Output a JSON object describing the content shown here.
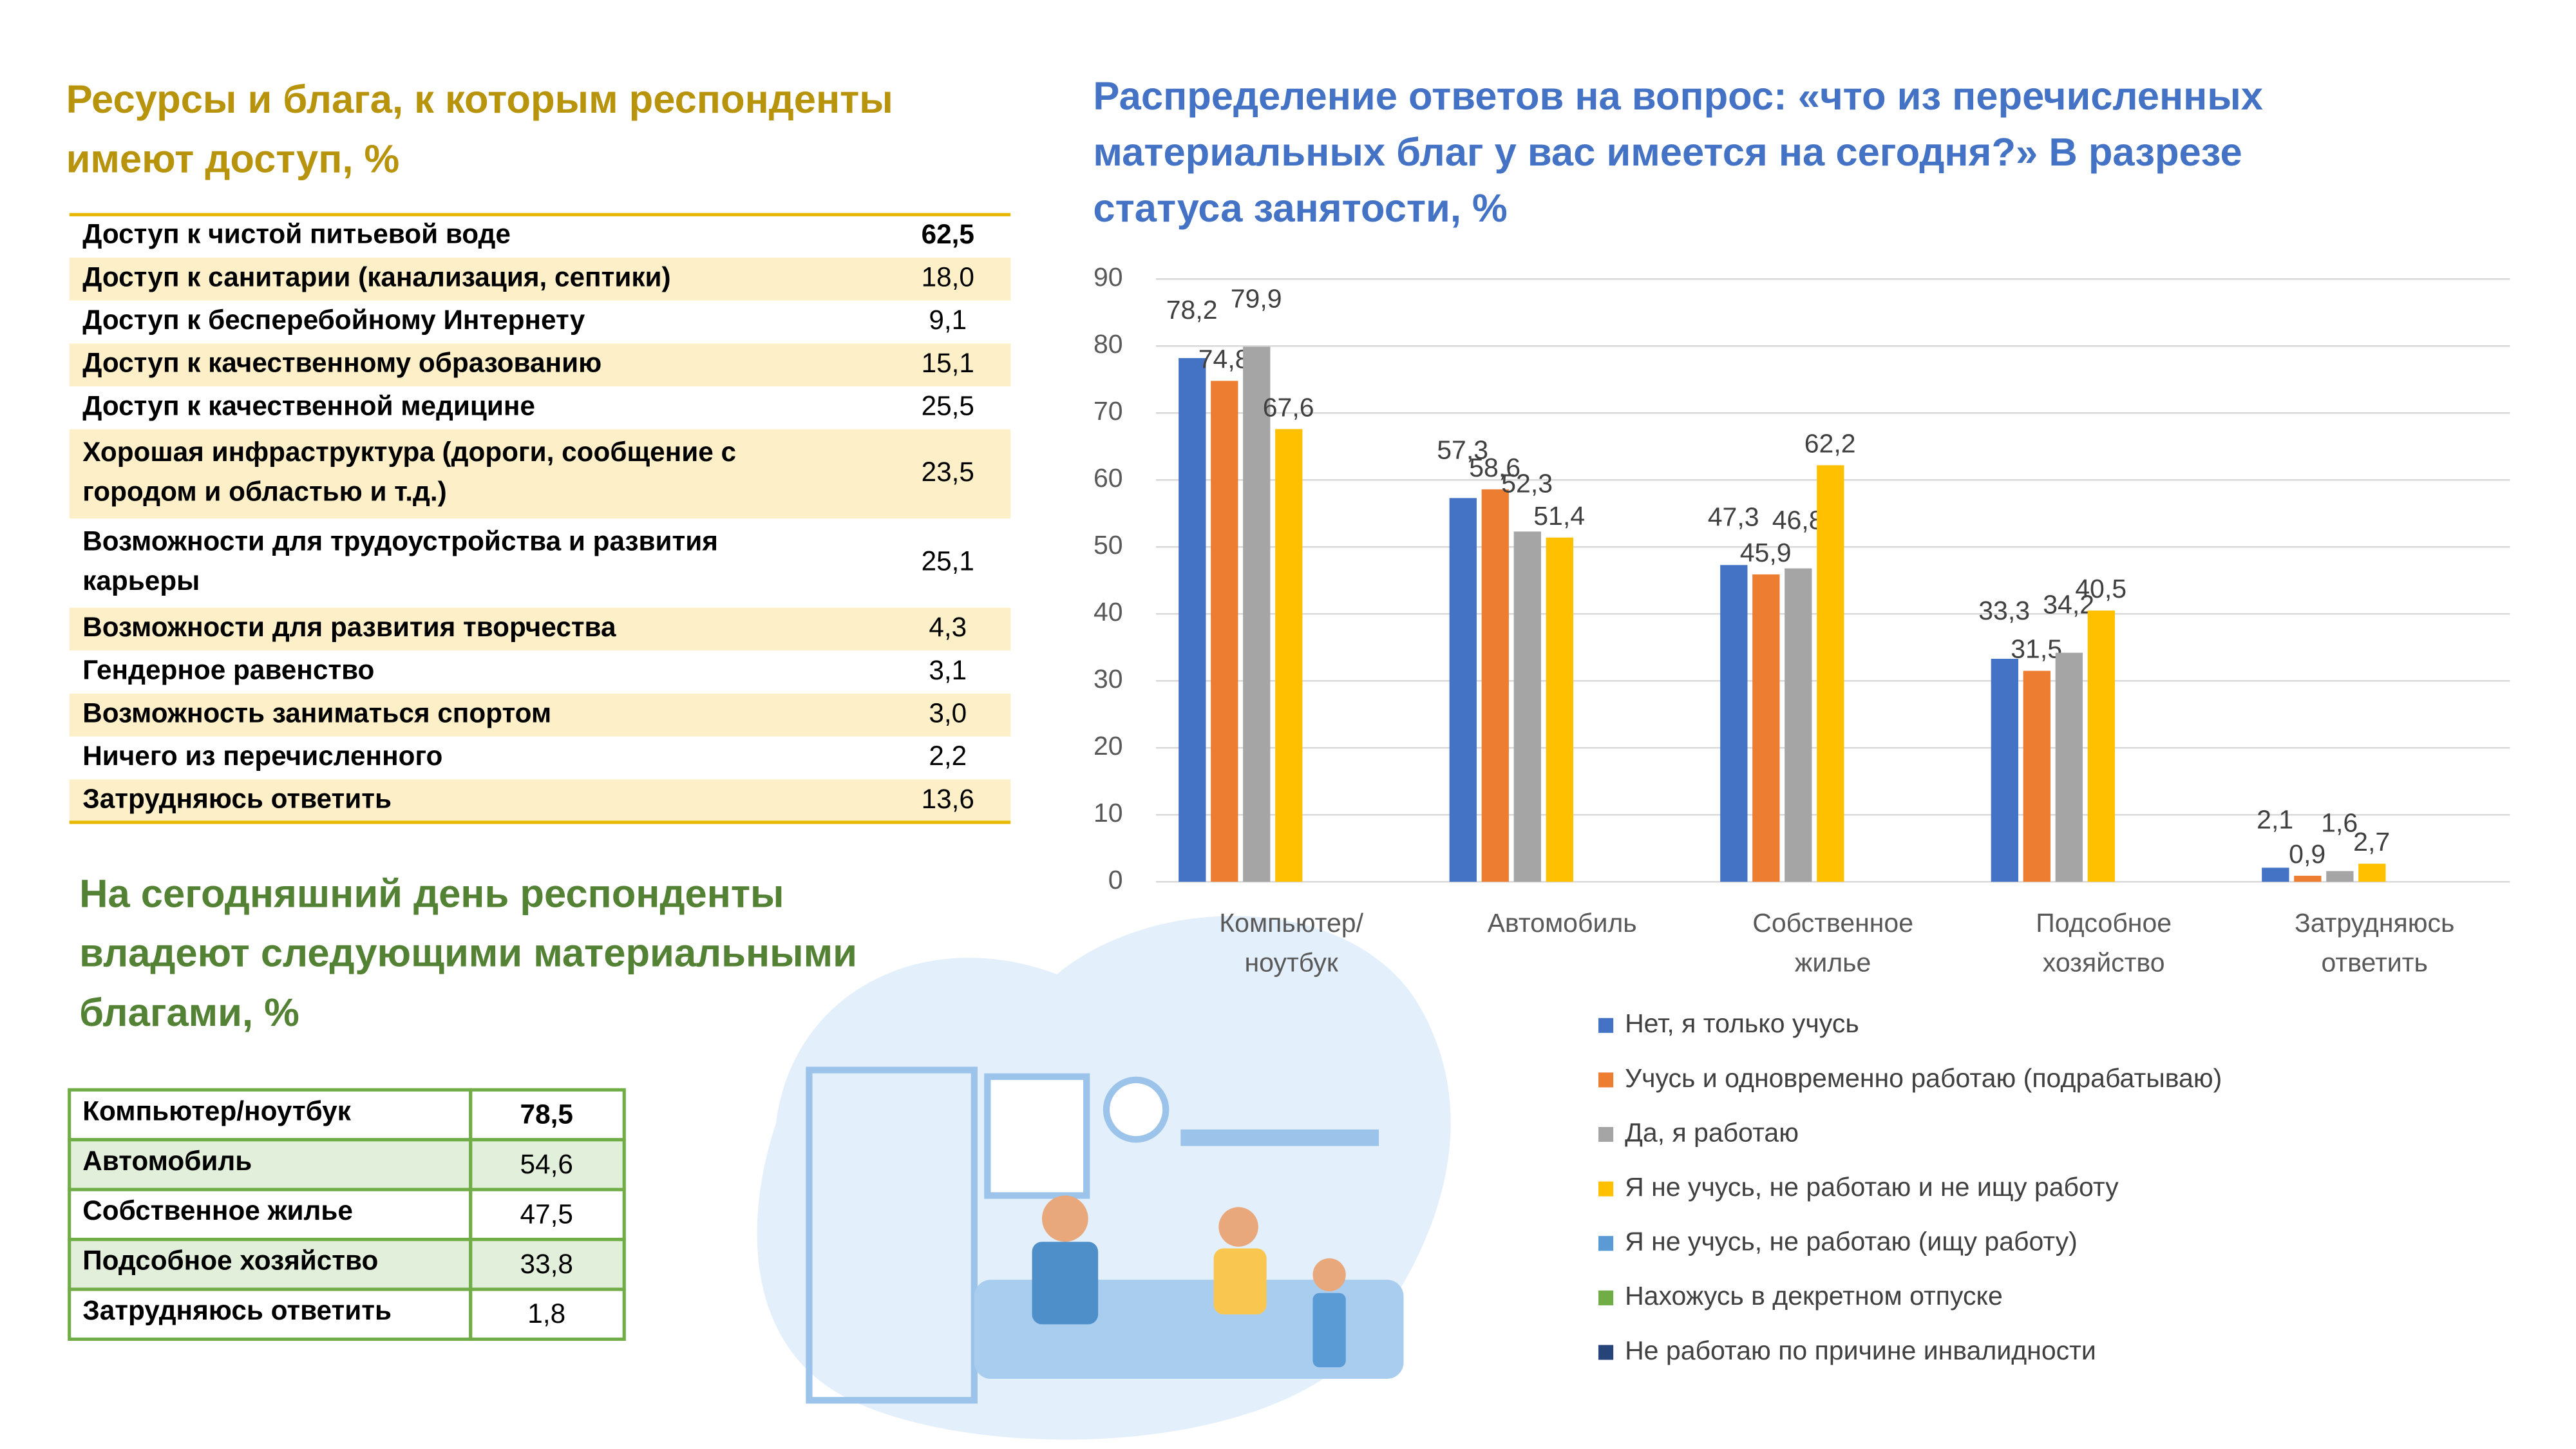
{
  "resources_table": {
    "title": "Ресурсы и блага, к которым респонденты имеют доступ, %",
    "rows": [
      [
        "Доступ к чистой питьевой воде",
        "62,5"
      ],
      [
        "Доступ к санитарии (канализация, септики)",
        "18,0"
      ],
      [
        "Доступ к бесперебойному Интернету",
        "9,1"
      ],
      [
        "Доступ к качественному образованию",
        "15,1"
      ],
      [
        "Доступ к качественной медицине",
        "25,5"
      ],
      [
        "Хорошая инфраструктура (дороги, сообщение с городом и областью и т.д.)",
        "23,5"
      ],
      [
        "Возможности для трудоустройства и развития карьеры",
        "25,1"
      ],
      [
        "Возможности для развития творчества",
        "4,3"
      ],
      [
        "Гендерное равенство",
        "3,1"
      ],
      [
        "Возможность заниматься спортом",
        "3,0"
      ],
      [
        "Ничего из перечисленного",
        "2,2"
      ],
      [
        "Затрудняюсь ответить",
        "13,6"
      ]
    ]
  },
  "goods_table": {
    "title": "На сегодняшний день респонденты владеют следующими материальными благами, %",
    "rows": [
      [
        "Компьютер/ноутбук",
        "78,5"
      ],
      [
        "Автомобиль",
        "54,6"
      ],
      [
        "Собственное жилье",
        "47,5"
      ],
      [
        "Подсобное хозяйство",
        "33,8"
      ],
      [
        "Затрудняюсь ответить",
        "1,8"
      ]
    ]
  },
  "chart_data": {
    "type": "bar",
    "title": "Распределение ответов на вопрос: «что из перечисленных материальных благ у вас имеется на сегодня?» В разрезе статуса занятости, %",
    "categories": [
      "Компьютер/ ноутбук",
      "Автомобиль",
      "Собственное жилье",
      "Подсобное хозяйство",
      "Затрудняюсь ответить"
    ],
    "series": [
      {
        "name": "Нет, я только учусь",
        "color": "#4472c4",
        "values": [
          78.2,
          57.3,
          47.3,
          33.3,
          2.1
        ],
        "value_labels": [
          "78,2",
          "57,3",
          "47,3",
          "33,3",
          "2,1"
        ]
      },
      {
        "name": "Учусь и одновременно работаю (подрабатываю)",
        "color": "#ed7d31",
        "values": [
          74.8,
          58.6,
          45.9,
          31.5,
          0.9
        ],
        "value_labels": [
          "74,8",
          "58,6",
          "45,9",
          "31,5",
          "0,9"
        ]
      },
      {
        "name": "Да, я работаю",
        "color": "#a5a5a5",
        "values": [
          79.9,
          52.3,
          46.8,
          34.2,
          1.6
        ],
        "value_labels": [
          "79,9",
          "52,3",
          "46,8",
          "34,2",
          "1,6"
        ]
      },
      {
        "name": "Я не учусь, не работаю и не ищу работу",
        "color": "#ffc000",
        "values": [
          67.6,
          51.4,
          62.2,
          40.5,
          2.7
        ],
        "value_labels": [
          "67,6",
          "51,4",
          "62,2",
          "40,5",
          "2,7"
        ]
      },
      {
        "name": "Я не учусь, не работаю (ищу работу)",
        "color": "#5b9bd5",
        "values": [
          null,
          null,
          null,
          null,
          null
        ]
      },
      {
        "name": "Нахожусь в декретном отпуске",
        "color": "#70ad47",
        "values": [
          null,
          null,
          null,
          null,
          null
        ]
      },
      {
        "name": "Не работаю по причине инвалидности",
        "color": "#264478",
        "values": [
          null,
          null,
          null,
          null,
          null
        ]
      }
    ],
    "ylim": [
      0,
      90
    ],
    "yticks": [
      0,
      10,
      20,
      30,
      40,
      50,
      60,
      70,
      80,
      90
    ],
    "grid": true,
    "legend": "bottom-right"
  }
}
